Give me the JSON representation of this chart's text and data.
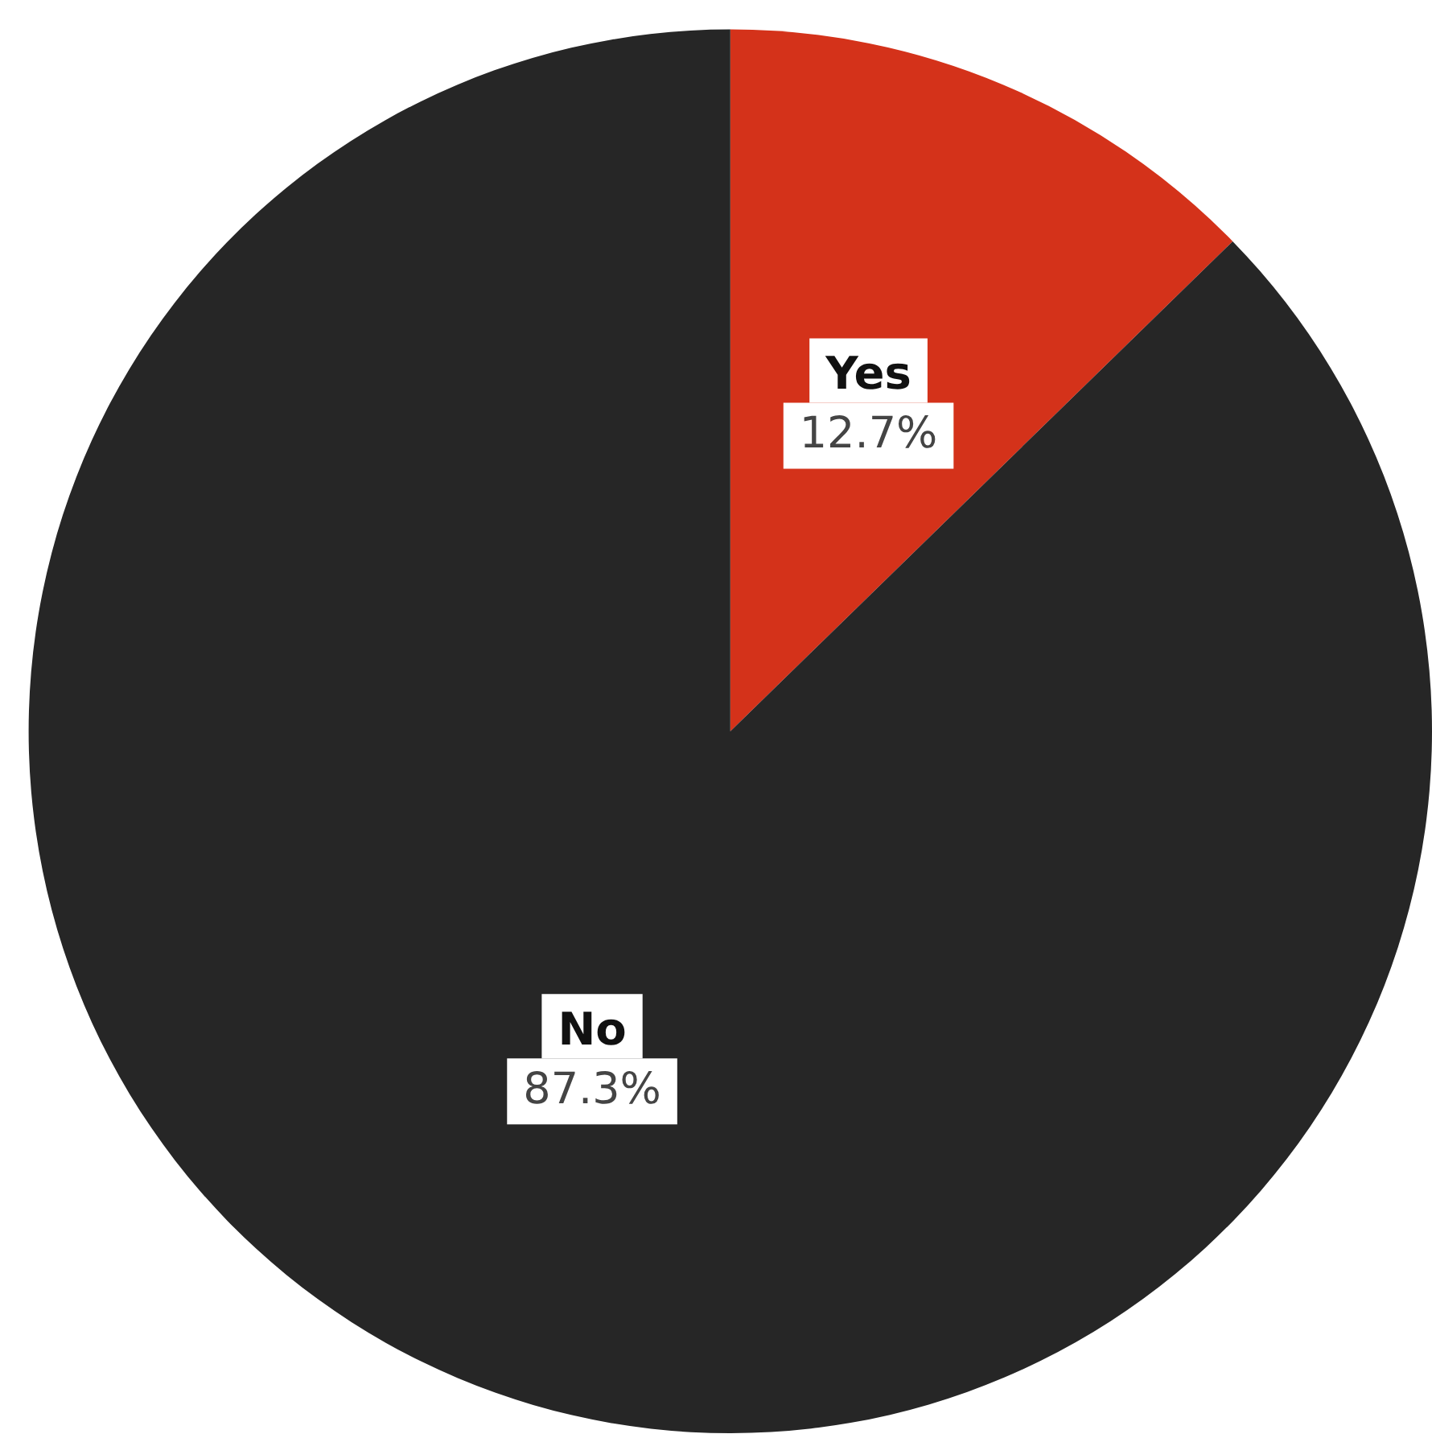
{
  "chart_data": {
    "type": "pie",
    "categories": [
      "Yes",
      "No"
    ],
    "values": [
      12.7,
      87.3
    ],
    "value_labels": [
      "12.7%",
      "87.3%"
    ],
    "colors": [
      "#d4321a",
      "#262626"
    ],
    "legend": false
  }
}
